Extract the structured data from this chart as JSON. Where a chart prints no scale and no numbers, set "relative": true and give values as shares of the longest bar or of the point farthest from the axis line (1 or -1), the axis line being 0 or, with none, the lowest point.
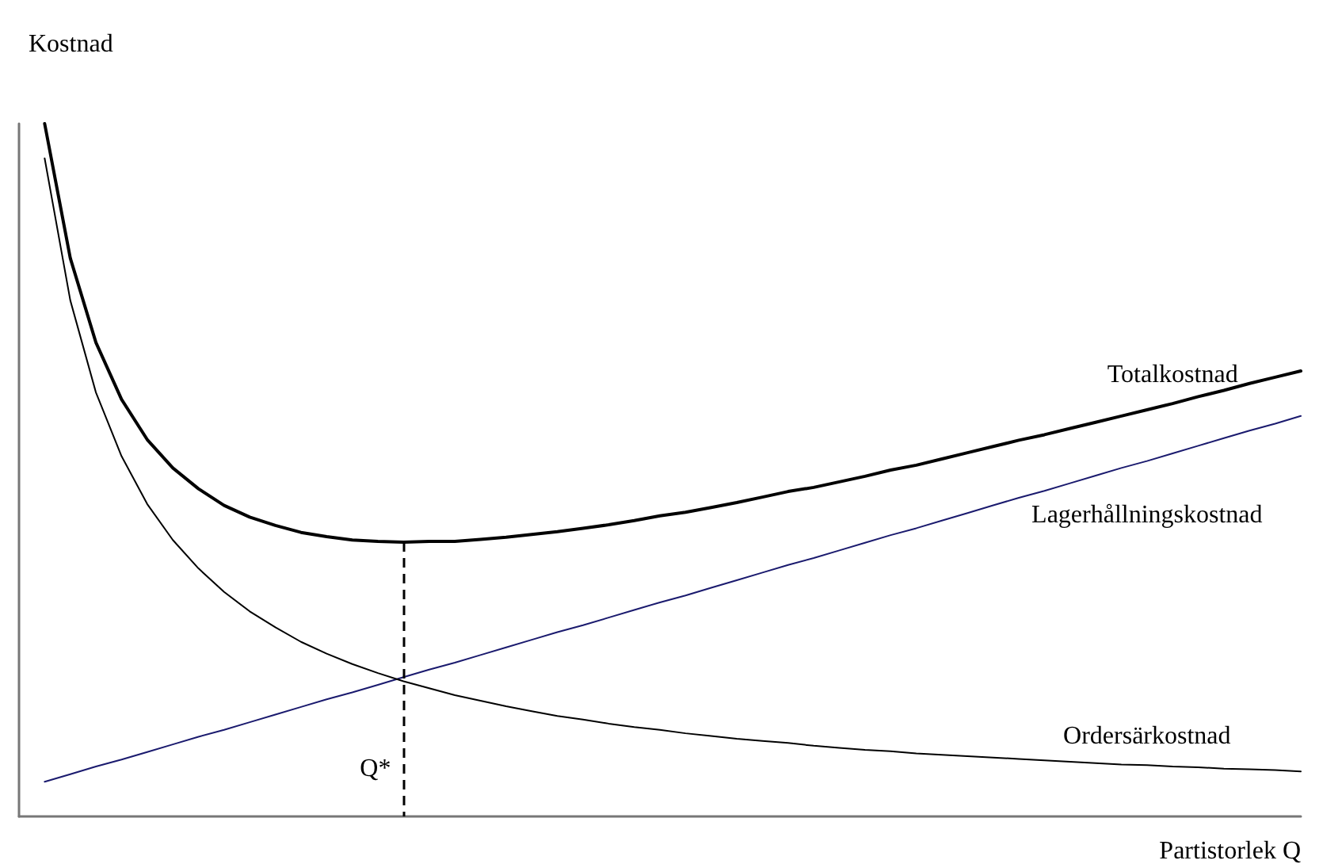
{
  "chart_data": {
    "type": "line",
    "relative": true,
    "xlabel": "Partistorlek Q",
    "ylabel": "Kostnad",
    "legend": false,
    "grid": false,
    "marker": "none",
    "categories": [
      null,
      null,
      null,
      null,
      null,
      null,
      null,
      null,
      null,
      null,
      null,
      null,
      null,
      null,
      null,
      null,
      null,
      null,
      null,
      null,
      null,
      null,
      null,
      null,
      null,
      null,
      null,
      null,
      null,
      null,
      null,
      null,
      null,
      null,
      null,
      null,
      null,
      null,
      null,
      null,
      null,
      null,
      null,
      null,
      null,
      null,
      null,
      null,
      null,
      null,
      null
    ],
    "series": [
      {
        "name": "Totalkostnad",
        "color": "#000000",
        "values": [
          null,
          1.0,
          0.806,
          0.684,
          0.602,
          0.544,
          0.503,
          0.473,
          0.449,
          0.432,
          0.42,
          0.41,
          0.404,
          0.399,
          0.397,
          0.396,
          0.397,
          0.397,
          0.4,
          0.403,
          0.407,
          0.411,
          0.416,
          0.421,
          0.427,
          0.434,
          0.439,
          0.446,
          0.453,
          0.461,
          0.469,
          0.475,
          0.483,
          0.491,
          0.5,
          0.507,
          0.516,
          0.525,
          0.534,
          0.543,
          0.551,
          0.56,
          0.569,
          0.578,
          0.587,
          0.596,
          0.606,
          0.615,
          0.625,
          0.634,
          0.643
        ]
      },
      {
        "name": "Lagerhållningskostnad",
        "color": "#1a1a6e",
        "values": [
          null,
          0.05,
          0.061,
          0.072,
          0.082,
          0.093,
          0.104,
          0.115,
          0.125,
          0.136,
          0.147,
          0.158,
          0.169,
          0.179,
          0.19,
          0.201,
          0.212,
          0.222,
          0.233,
          0.244,
          0.255,
          0.266,
          0.276,
          0.287,
          0.298,
          0.309,
          0.319,
          0.33,
          0.341,
          0.352,
          0.363,
          0.373,
          0.384,
          0.395,
          0.406,
          0.416,
          0.427,
          0.438,
          0.449,
          0.46,
          0.47,
          0.481,
          0.492,
          0.503,
          0.513,
          0.524,
          0.535,
          0.546,
          0.557,
          0.567,
          0.578
        ]
      },
      {
        "name": "Ordersärkostnad",
        "color": "#000000",
        "values": [
          null,
          0.95,
          0.745,
          0.612,
          0.52,
          0.451,
          0.399,
          0.358,
          0.324,
          0.296,
          0.273,
          0.252,
          0.235,
          0.22,
          0.207,
          0.195,
          0.185,
          0.175,
          0.167,
          0.159,
          0.152,
          0.145,
          0.14,
          0.134,
          0.129,
          0.125,
          0.12,
          0.116,
          0.112,
          0.109,
          0.106,
          0.102,
          0.099,
          0.096,
          0.094,
          0.091,
          0.089,
          0.087,
          0.085,
          0.083,
          0.081,
          0.079,
          0.077,
          0.075,
          0.074,
          0.072,
          0.071,
          0.069,
          0.068,
          0.067,
          0.065
        ]
      }
    ],
    "annotations": [
      "Q*"
    ]
  }
}
